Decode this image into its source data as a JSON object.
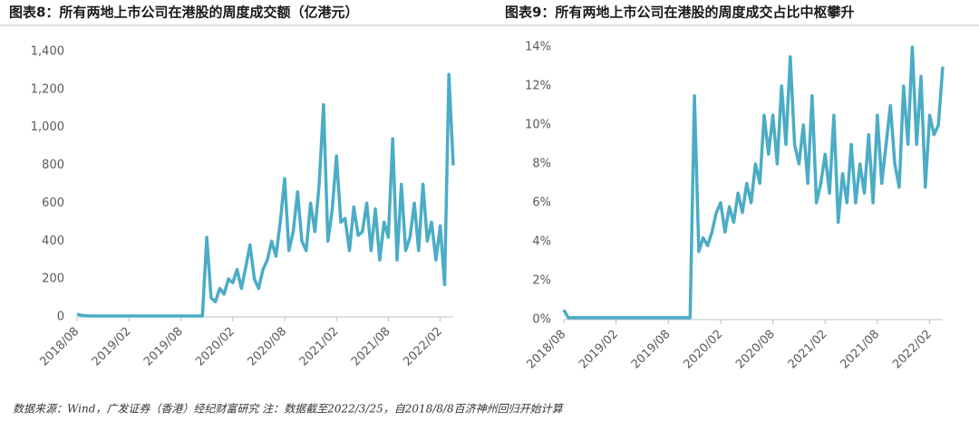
{
  "chart_data": [
    {
      "type": "line",
      "title": "图表8：所有两地上市公司在港股的周度成交额（亿港元）",
      "categories": [
        "2018/08",
        null,
        null,
        null,
        null,
        null,
        null,
        null,
        null,
        null,
        null,
        null,
        "2019/02",
        null,
        null,
        null,
        null,
        null,
        null,
        null,
        null,
        null,
        null,
        null,
        "2019/08",
        null,
        null,
        null,
        null,
        null,
        null,
        null,
        null,
        null,
        null,
        null,
        "2020/02",
        null,
        null,
        null,
        null,
        null,
        null,
        null,
        null,
        null,
        null,
        null,
        "2020/08",
        null,
        null,
        null,
        null,
        null,
        null,
        null,
        null,
        null,
        null,
        null,
        "2021/02",
        null,
        null,
        null,
        null,
        null,
        null,
        null,
        null,
        null,
        null,
        null,
        "2021/08",
        null,
        null,
        null,
        null,
        null,
        null,
        null,
        null,
        null,
        null,
        null,
        "2022/02",
        null,
        null,
        null
      ],
      "series": [
        {
          "color": "#4bacc6",
          "values": [
            15,
            8,
            6,
            5,
            5,
            5,
            5,
            5,
            5,
            5,
            5,
            5,
            5,
            5,
            5,
            5,
            5,
            5,
            5,
            5,
            5,
            5,
            5,
            5,
            5,
            5,
            5,
            5,
            5,
            5,
            420,
            100,
            80,
            150,
            120,
            200,
            180,
            250,
            150,
            260,
            380,
            200,
            150,
            250,
            300,
            400,
            320,
            500,
            730,
            350,
            450,
            660,
            400,
            350,
            600,
            450,
            700,
            1120,
            400,
            560,
            850,
            500,
            520,
            350,
            580,
            430,
            450,
            600,
            350,
            570,
            300,
            500,
            420,
            940,
            300,
            700,
            350,
            420,
            600,
            350,
            700,
            400,
            500,
            300,
            480,
            170,
            1280,
            800
          ]
        }
      ],
      "ylim": [
        0,
        1400
      ],
      "yticks": [
        0,
        200,
        400,
        600,
        800,
        {
          "value": 1000,
          "label": "1,000"
        },
        {
          "value": 1200,
          "label": "1,200"
        },
        {
          "value": 1400,
          "label": "1,400"
        }
      ]
    },
    {
      "type": "line",
      "title": "图表9：所有两地上市公司在港股的周度成交占比中枢攀升",
      "categories": [
        "2018/08",
        null,
        null,
        null,
        null,
        null,
        null,
        null,
        null,
        null,
        null,
        null,
        "2019/02",
        null,
        null,
        null,
        null,
        null,
        null,
        null,
        null,
        null,
        null,
        null,
        "2019/08",
        null,
        null,
        null,
        null,
        null,
        null,
        null,
        null,
        null,
        null,
        null,
        "2020/02",
        null,
        null,
        null,
        null,
        null,
        null,
        null,
        null,
        null,
        null,
        null,
        "2020/08",
        null,
        null,
        null,
        null,
        null,
        null,
        null,
        null,
        null,
        null,
        null,
        "2021/02",
        null,
        null,
        null,
        null,
        null,
        null,
        null,
        null,
        null,
        null,
        null,
        "2021/08",
        null,
        null,
        null,
        null,
        null,
        null,
        null,
        null,
        null,
        null,
        null,
        "2022/02",
        null,
        null,
        null
      ],
      "series": [
        {
          "color": "#4bacc6",
          "values": [
            0.5,
            0.1,
            0.1,
            0.1,
            0.1,
            0.1,
            0.1,
            0.1,
            0.1,
            0.1,
            0.1,
            0.1,
            0.1,
            0.1,
            0.1,
            0.1,
            0.1,
            0.1,
            0.1,
            0.1,
            0.1,
            0.1,
            0.1,
            0.1,
            0.1,
            0.1,
            0.1,
            0.1,
            0.1,
            0.1,
            11.5,
            3.5,
            4.2,
            3.8,
            4.5,
            5.5,
            6,
            4.5,
            5.8,
            5,
            6.5,
            5.5,
            7,
            6,
            8,
            7,
            10.5,
            8.5,
            10.5,
            8,
            12,
            9,
            13.5,
            9,
            8,
            10,
            7,
            11.5,
            6,
            7,
            8.5,
            6.5,
            10.5,
            5,
            7.5,
            6,
            9,
            6,
            8,
            6.5,
            9.5,
            6,
            10.5,
            7,
            9,
            11,
            8,
            6.8,
            12,
            9,
            14,
            9,
            12.5,
            6.8,
            10.5,
            9.5,
            10,
            13
          ]
        }
      ],
      "ylim": [
        0,
        14
      ],
      "yticks": [
        {
          "value": 0,
          "label": "0%"
        },
        {
          "value": 2,
          "label": "2%"
        },
        {
          "value": 4,
          "label": "4%"
        },
        {
          "value": 6,
          "label": "6%"
        },
        {
          "value": 8,
          "label": "8%"
        },
        {
          "value": 10,
          "label": "10%"
        },
        {
          "value": 12,
          "label": "12%"
        },
        {
          "value": 14,
          "label": "14%"
        }
      ]
    }
  ],
  "source": "数据来源：Wind，广发证券（香港）经纪财富研究 注：数据截至2022/3/25，自2018/8/8百济神州回归开始计算"
}
